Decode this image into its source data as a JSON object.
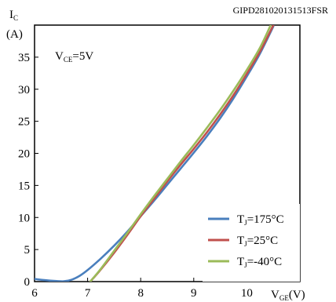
{
  "figure_code": "GIPD281020131513FSR",
  "chart_data": {
    "type": "line",
    "ylabel_main": "I",
    "ylabel_sub": "C",
    "ylabel_unit": "(A)",
    "xlabel_main": "V",
    "xlabel_sub": "GE",
    "xlabel_unit": "(V)",
    "annotation_main": "V",
    "annotation_sub": "CE",
    "annotation_rest": "=5V",
    "xlim": [
      6,
      11
    ],
    "ylim": [
      0,
      40
    ],
    "x_ticks": [
      6,
      7,
      8,
      9,
      10
    ],
    "y_ticks": [
      0,
      5,
      10,
      15,
      20,
      25,
      30,
      35
    ],
    "x_tick_labels": [
      "6",
      "7",
      "8",
      "9",
      "10"
    ],
    "y_tick_labels": [
      "0",
      "5",
      "10",
      "15",
      "20",
      "25",
      "30",
      "35"
    ],
    "grid": false,
    "legend_position": "bottom-right",
    "series": [
      {
        "name_main": "T",
        "name_sub": "J",
        "name_rest": "=175°C",
        "color": "#4a7fbd",
        "points": [
          [
            6.0,
            0.4
          ],
          [
            6.3,
            0.15
          ],
          [
            6.55,
            0.05
          ],
          [
            6.7,
            0.3
          ],
          [
            6.85,
            0.9
          ],
          [
            7.0,
            1.8
          ],
          [
            7.25,
            3.6
          ],
          [
            7.5,
            5.6
          ],
          [
            7.75,
            7.8
          ],
          [
            8.0,
            10.2
          ],
          [
            8.25,
            12.6
          ],
          [
            8.5,
            15.1
          ],
          [
            8.75,
            17.6
          ],
          [
            9.0,
            20.1
          ],
          [
            9.25,
            22.7
          ],
          [
            9.5,
            25.5
          ],
          [
            9.75,
            28.6
          ],
          [
            10.0,
            32.0
          ],
          [
            10.25,
            35.6
          ],
          [
            10.5,
            39.8
          ]
        ]
      },
      {
        "name_main": "T",
        "name_sub": "J",
        "name_rest": "=25°C",
        "color": "#c0504d",
        "points": [
          [
            7.05,
            0.0
          ],
          [
            7.25,
            1.9
          ],
          [
            7.5,
            4.5
          ],
          [
            7.75,
            7.3
          ],
          [
            8.0,
            10.2
          ],
          [
            8.25,
            12.9
          ],
          [
            8.5,
            15.6
          ],
          [
            8.75,
            18.2
          ],
          [
            9.0,
            20.7
          ],
          [
            9.25,
            23.3
          ],
          [
            9.5,
            26.1
          ],
          [
            9.75,
            29.1
          ],
          [
            10.0,
            32.4
          ],
          [
            10.25,
            35.9
          ],
          [
            10.5,
            40.0
          ]
        ]
      },
      {
        "name_main": "T",
        "name_sub": "J",
        "name_rest": "=-40°C",
        "color": "#9bbb59",
        "points": [
          [
            7.05,
            0.0
          ],
          [
            7.25,
            2.0
          ],
          [
            7.5,
            4.8
          ],
          [
            7.75,
            7.6
          ],
          [
            8.0,
            10.5
          ],
          [
            8.25,
            13.3
          ],
          [
            8.5,
            16.0
          ],
          [
            8.75,
            18.7
          ],
          [
            9.0,
            21.3
          ],
          [
            9.25,
            24.0
          ],
          [
            9.5,
            26.8
          ],
          [
            9.75,
            29.8
          ],
          [
            10.0,
            33.0
          ],
          [
            10.25,
            36.5
          ],
          [
            10.45,
            40.0
          ]
        ]
      }
    ]
  }
}
